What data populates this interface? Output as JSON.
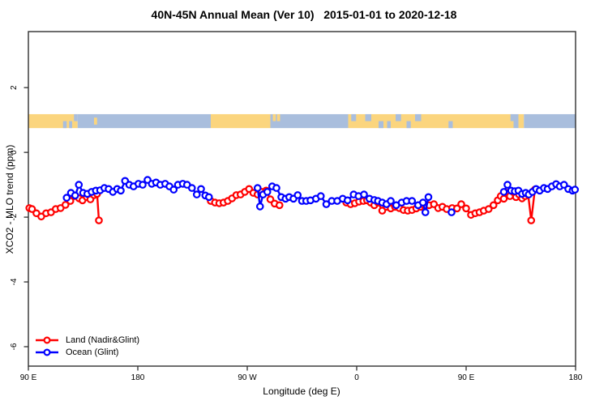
{
  "chart_data": {
    "type": "line",
    "title": "40N-45N Annual Mean (Ver 10)   2015-01-01 to 2020-12-18",
    "xlabel": "Longitude (deg E)",
    "ylabel": "XCO2 - MLO trend (ppm)",
    "x_axis": {
      "span_deg": 450,
      "ticks": [
        {
          "deg": 0,
          "label": "90 E"
        },
        {
          "deg": 90,
          "label": "180"
        },
        {
          "deg": 180,
          "label": "90 W"
        },
        {
          "deg": 270,
          "label": "0"
        },
        {
          "deg": 360,
          "label": "90 E"
        },
        {
          "deg": 450,
          "label": "180"
        }
      ]
    },
    "y_axis": {
      "ticks": [
        2,
        0,
        -2,
        -4,
        -6
      ],
      "ylim": [
        -6.6,
        3.73
      ],
      "grid": false
    },
    "map_band": {
      "value_top": 1.18,
      "value_bottom": 0.75,
      "land_color": "#fbd57e",
      "ocean_color": "#a9bedd",
      "segments": [
        {
          "from": 0,
          "to": 40.5,
          "type": "land"
        },
        {
          "from": 40.5,
          "to": 150,
          "type": "ocean"
        },
        {
          "from": 150,
          "to": 199,
          "type": "land"
        },
        {
          "from": 199,
          "to": 263,
          "type": "ocean"
        },
        {
          "from": 263,
          "to": 399,
          "type": "land"
        },
        {
          "from": 399,
          "to": 403,
          "type": "ocean"
        },
        {
          "from": 403,
          "to": 407.5,
          "type": "land"
        },
        {
          "from": 407.5,
          "to": 450,
          "type": "ocean"
        }
      ],
      "specks": [
        {
          "from": 28.5,
          "to": 31.5,
          "type": "ocean",
          "pos": "bottom"
        },
        {
          "from": 33.5,
          "to": 36,
          "type": "ocean",
          "pos": "bottom"
        },
        {
          "from": 37.5,
          "to": 40.5,
          "type": "ocean",
          "pos": "top"
        },
        {
          "from": 54,
          "to": 56.5,
          "type": "land",
          "pos": "mid"
        },
        {
          "from": 201,
          "to": 203.5,
          "type": "land",
          "pos": "top"
        },
        {
          "from": 204.5,
          "to": 207,
          "type": "land",
          "pos": "top"
        },
        {
          "from": 265.5,
          "to": 269.5,
          "type": "ocean",
          "pos": "top"
        },
        {
          "from": 277,
          "to": 282,
          "type": "ocean",
          "pos": "top"
        },
        {
          "from": 288,
          "to": 292,
          "type": "ocean",
          "pos": "bottom"
        },
        {
          "from": 295,
          "to": 298,
          "type": "ocean",
          "pos": "bottom"
        },
        {
          "from": 302,
          "to": 306.5,
          "type": "ocean",
          "pos": "top"
        },
        {
          "from": 311,
          "to": 314.5,
          "type": "ocean",
          "pos": "bottom"
        },
        {
          "from": 318,
          "to": 323,
          "type": "ocean",
          "pos": "top"
        },
        {
          "from": 345.5,
          "to": 349,
          "type": "ocean",
          "pos": "bottom"
        },
        {
          "from": 396.5,
          "to": 399,
          "type": "ocean",
          "pos": "top"
        }
      ]
    },
    "series": [
      {
        "name": "Land (Nadir&Glint)",
        "color": "#ff0000",
        "segments": [
          [
            [
              0.8,
              -1.72
            ],
            [
              3,
              -1.75
            ],
            [
              6.6,
              -1.88
            ],
            [
              10.6,
              -1.98
            ],
            [
              14.6,
              -1.88
            ],
            [
              18.6,
              -1.85
            ],
            [
              22.5,
              -1.75
            ],
            [
              26.5,
              -1.72
            ],
            [
              30.5,
              -1.62
            ],
            [
              34.5,
              -1.5
            ],
            [
              37.8,
              -1.35
            ],
            [
              41.7,
              -1.42
            ],
            [
              44.5,
              -1.48
            ],
            [
              48,
              -1.38
            ],
            [
              51,
              -1.45
            ],
            [
              54,
              -1.32
            ],
            [
              56.5,
              -1.28
            ],
            [
              58,
              -2.1
            ]
          ],
          [
            [
              150,
              -1.5
            ],
            [
              153.5,
              -1.55
            ],
            [
              157,
              -1.57
            ],
            [
              160.5,
              -1.55
            ],
            [
              164,
              -1.5
            ],
            [
              167.5,
              -1.42
            ],
            [
              171,
              -1.32
            ],
            [
              174.5,
              -1.3
            ],
            [
              178,
              -1.22
            ],
            [
              181.5,
              -1.13
            ],
            [
              185,
              -1.25
            ],
            [
              188.5,
              -1.3
            ],
            [
              192,
              -1.22
            ],
            [
              195.5,
              -1.18
            ],
            [
              199,
              -1.45
            ],
            [
              202.5,
              -1.58
            ],
            [
              206.5,
              -1.63
            ]
          ],
          [
            [
              261.5,
              -1.55
            ],
            [
              265,
              -1.6
            ],
            [
              268.5,
              -1.57
            ],
            [
              272,
              -1.52
            ],
            [
              275.5,
              -1.5
            ],
            [
              278.5,
              -1.48
            ],
            [
              281.5,
              -1.55
            ],
            [
              284.5,
              -1.63
            ],
            [
              287.5,
              -1.55
            ],
            [
              291,
              -1.8
            ],
            [
              294.5,
              -1.68
            ],
            [
              298,
              -1.73
            ],
            [
              301.5,
              -1.68
            ],
            [
              305,
              -1.72
            ],
            [
              308.5,
              -1.78
            ],
            [
              312,
              -1.8
            ],
            [
              315.5,
              -1.78
            ],
            [
              319,
              -1.73
            ],
            [
              322.5,
              -1.68
            ],
            [
              326,
              -1.65
            ],
            [
              329.5,
              -1.63
            ],
            [
              333.5,
              -1.6
            ],
            [
              337,
              -1.72
            ],
            [
              340.5,
              -1.68
            ],
            [
              344,
              -1.75
            ],
            [
              348.5,
              -1.72
            ],
            [
              352.5,
              -1.73
            ],
            [
              356,
              -1.6
            ],
            [
              360,
              -1.73
            ],
            [
              364,
              -1.93
            ],
            [
              367.5,
              -1.88
            ],
            [
              371,
              -1.85
            ],
            [
              374.5,
              -1.8
            ],
            [
              378.5,
              -1.75
            ],
            [
              382.5,
              -1.63
            ],
            [
              386,
              -1.48
            ],
            [
              388.5,
              -1.35
            ],
            [
              391,
              -1.43
            ],
            [
              393.5,
              -1.25
            ],
            [
              396,
              -1.35
            ],
            [
              398.5,
              -1.22
            ],
            [
              401,
              -1.38
            ],
            [
              403.5,
              -1.3
            ],
            [
              406,
              -1.42
            ],
            [
              408.5,
              -1.35
            ],
            [
              411,
              -1.3
            ],
            [
              413.5,
              -2.1
            ],
            [
              416.5,
              -1.15
            ]
          ]
        ],
        "isolated": []
      },
      {
        "name": "Ocean (Glint)",
        "color": "#0000ff",
        "segments": [
          [
            [
              31.5,
              -1.4
            ],
            [
              35,
              -1.25
            ],
            [
              38.5,
              -1.33
            ],
            [
              41.5,
              -1.0
            ],
            [
              45,
              -1.25
            ],
            [
              48.5,
              -1.28
            ],
            [
              52,
              -1.22
            ],
            [
              55.5,
              -1.18
            ],
            [
              59,
              -1.17
            ],
            [
              62.5,
              -1.1
            ],
            [
              66,
              -1.13
            ],
            [
              69.5,
              -1.22
            ],
            [
              73,
              -1.13
            ],
            [
              76,
              -1.18
            ],
            [
              79.5,
              -0.88
            ],
            [
              83,
              -1.0
            ],
            [
              86.5,
              -1.05
            ],
            [
              90.5,
              -0.97
            ],
            [
              94,
              -1.0
            ],
            [
              98,
              -0.85
            ],
            [
              101.5,
              -0.97
            ],
            [
              105,
              -0.93
            ],
            [
              108.5,
              -1.0
            ],
            [
              112.5,
              -0.97
            ],
            [
              116,
              -1.05
            ],
            [
              119.5,
              -1.15
            ],
            [
              123,
              -1.0
            ],
            [
              127,
              -0.97
            ],
            [
              130.5,
              -1.0
            ],
            [
              134.5,
              -1.1
            ],
            [
              138.5,
              -1.3
            ],
            [
              142,
              -1.13
            ],
            [
              145.5,
              -1.33
            ],
            [
              148.5,
              -1.38
            ]
          ],
          [
            [
              188.5,
              -1.1
            ],
            [
              190.5,
              -1.67
            ],
            [
              193,
              -1.3
            ],
            [
              196.5,
              -1.22
            ],
            [
              200.5,
              -1.05
            ],
            [
              204,
              -1.1
            ],
            [
              208,
              -1.38
            ],
            [
              211.5,
              -1.43
            ],
            [
              214.5,
              -1.38
            ],
            [
              218,
              -1.43
            ],
            [
              221.5,
              -1.32
            ],
            [
              225,
              -1.5
            ],
            [
              228.5,
              -1.5
            ],
            [
              232,
              -1.48
            ],
            [
              236.5,
              -1.43
            ],
            [
              240.5,
              -1.35
            ],
            [
              245,
              -1.6
            ],
            [
              249.5,
              -1.5
            ],
            [
              254,
              -1.5
            ],
            [
              258.5,
              -1.43
            ],
            [
              262.5,
              -1.48
            ],
            [
              267.5,
              -1.3
            ],
            [
              271.5,
              -1.35
            ],
            [
              276,
              -1.3
            ],
            [
              280.5,
              -1.43
            ],
            [
              284.5,
              -1.47
            ],
            [
              287.5,
              -1.5
            ],
            [
              291,
              -1.55
            ],
            [
              294.5,
              -1.6
            ],
            [
              298,
              -1.5
            ],
            [
              302.5,
              -1.63
            ],
            [
              307,
              -1.55
            ],
            [
              311,
              -1.5
            ],
            [
              315.5,
              -1.5
            ],
            [
              320.5,
              -1.63
            ],
            [
              324.5,
              -1.55
            ],
            [
              326.5,
              -1.85
            ],
            [
              329,
              -1.38
            ]
          ],
          [
            [
              391,
              -1.22
            ],
            [
              394,
              -1.0
            ],
            [
              397,
              -1.18
            ],
            [
              400,
              -1.2
            ],
            [
              403,
              -1.18
            ],
            [
              406,
              -1.28
            ],
            [
              409,
              -1.25
            ],
            [
              411.5,
              -1.3
            ],
            [
              414.5,
              -1.22
            ],
            [
              417.5,
              -1.13
            ],
            [
              420.5,
              -1.18
            ],
            [
              424,
              -1.1
            ],
            [
              427,
              -1.13
            ],
            [
              430.5,
              -1.05
            ],
            [
              434,
              -0.98
            ],
            [
              437,
              -1.05
            ],
            [
              440.5,
              -1.0
            ],
            [
              444,
              -1.13
            ],
            [
              447.5,
              -1.18
            ],
            [
              449.5,
              -1.15
            ]
          ]
        ],
        "isolated": [
          [
            348,
            -1.85
          ]
        ]
      }
    ],
    "legend_position": "bottom-left",
    "axis_color": "#2f2f2f",
    "text_color": "#000000"
  }
}
